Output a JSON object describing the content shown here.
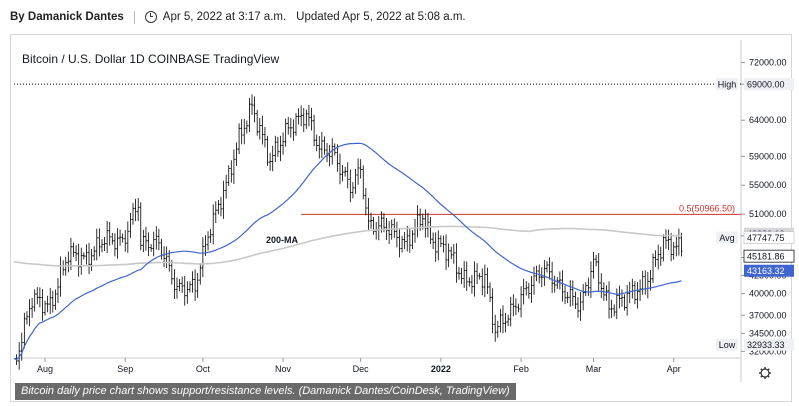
{
  "byline": {
    "author": "By Damanick Dantes",
    "published": "Apr 5, 2022 at 3:17 a.m.",
    "updated": "Updated Apr 5, 2022 at 5:08 a.m."
  },
  "caption": "Bitcoin daily price chart shows support/resistance levels. (Damanick Dantes/CoinDesk, TradingView)",
  "chart_data": {
    "type": "candlestick",
    "title": "Bitcoin / U.S. Dollar  1D  COINBASE  TradingView",
    "y_ticks": [
      "72000.00",
      "69000.00",
      "64000.00",
      "59000.00",
      "55000.00",
      "51000.00",
      "48000.00",
      "45000.00",
      "42500.00",
      "40000.00",
      "37000.00",
      "34500.00",
      "32000.00"
    ],
    "y_range": [
      31500,
      74000
    ],
    "x_ticks": [
      "Aug",
      "Sep",
      "Oct",
      "Nov",
      "Dec",
      "2022",
      "Feb",
      "Mar",
      "Apr"
    ],
    "x_range": [
      "2021-07-20",
      "2022-04-10"
    ],
    "high_label": "High",
    "high_value": 69000.0,
    "low_label": "Low",
    "low_value": 32933.33,
    "avg_label": "Avg",
    "avg_value": 47747.75,
    "price_value": 45181.86,
    "ma50_value": 43163.32,
    "ma200_value": 48286.12,
    "fib_label": "0.5(50966.50)",
    "fib_value": 50966.5,
    "ma200_label": "200-MA",
    "colors": {
      "price": "#000000",
      "ma50": "#3f66d0",
      "ma200": "#c8c8c8",
      "fib": "#d03030",
      "high": "#000000"
    },
    "closes": [
      [
        "2021-07-20",
        29800
      ],
      [
        "2021-07-27",
        39400
      ],
      [
        "2021-08-03",
        38200
      ],
      [
        "2021-08-10",
        45600
      ],
      [
        "2021-08-17",
        44700
      ],
      [
        "2021-08-24",
        47700
      ],
      [
        "2021-08-31",
        47100
      ],
      [
        "2021-09-06",
        52700
      ],
      [
        "2021-09-07",
        46900
      ],
      [
        "2021-09-14",
        47100
      ],
      [
        "2021-09-21",
        40600
      ],
      [
        "2021-09-28",
        41000
      ],
      [
        "2021-10-03",
        48200
      ],
      [
        "2021-10-10",
        55000
      ],
      [
        "2021-10-15",
        61500
      ],
      [
        "2021-10-20",
        65900
      ],
      [
        "2021-10-27",
        58400
      ],
      [
        "2021-11-03",
        62900
      ],
      [
        "2021-11-10",
        64900
      ],
      [
        "2021-11-15",
        60100
      ],
      [
        "2021-11-20",
        59600
      ],
      [
        "2021-11-27",
        54700
      ],
      [
        "2021-12-01",
        57200
      ],
      [
        "2021-12-04",
        49400
      ],
      [
        "2021-12-11",
        49300
      ],
      [
        "2021-12-18",
        46700
      ],
      [
        "2021-12-25",
        50800
      ],
      [
        "2021-12-28",
        47500
      ],
      [
        "2022-01-04",
        45800
      ],
      [
        "2022-01-10",
        41800
      ],
      [
        "2022-01-18",
        42300
      ],
      [
        "2022-01-22",
        35000
      ],
      [
        "2022-01-29",
        37900
      ],
      [
        "2022-02-05",
        41500
      ],
      [
        "2022-02-10",
        43500
      ],
      [
        "2022-02-17",
        40500
      ],
      [
        "2022-02-24",
        38300
      ],
      [
        "2022-03-01",
        44400
      ],
      [
        "2022-03-07",
        38000
      ],
      [
        "2022-03-14",
        39700
      ],
      [
        "2022-03-21",
        41200
      ],
      [
        "2022-03-28",
        47100
      ],
      [
        "2022-04-02",
        46400
      ],
      [
        "2022-04-04",
        46600
      ]
    ]
  }
}
